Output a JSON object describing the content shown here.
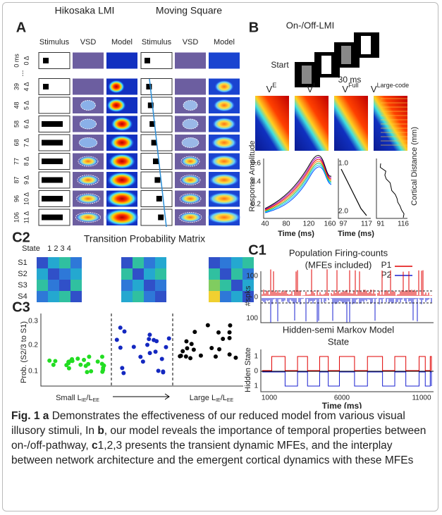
{
  "panel_a": {
    "label": "A",
    "titles": [
      "Hikosaka LMI",
      "Moving Square"
    ],
    "columns": [
      "Stimulus",
      "VSD",
      "Model",
      "Stimulus",
      "VSD",
      "Model"
    ],
    "ellipsis": "...",
    "rows": [
      {
        "time": "0 ms",
        "step": "0 Δ"
      },
      {
        "time": "39",
        "step": "4 Δ"
      },
      {
        "time": "48",
        "step": "5 Δ"
      },
      {
        "time": "58",
        "step": "6 Δ"
      },
      {
        "time": "68",
        "step": "7 Δ"
      },
      {
        "time": "77",
        "step": "8 Δ"
      },
      {
        "time": "87",
        "step": "9 Δ"
      },
      {
        "time": "96",
        "step": "10 Δ"
      },
      {
        "time": "106",
        "step": "11 Δ"
      }
    ]
  },
  "panel_b": {
    "label": "B",
    "title": "On-/Off-LMI",
    "start": "Start",
    "interval": "30 ms",
    "maps": [
      {
        "base": "V",
        "sup": "E"
      },
      {
        "base": "V",
        "sup": "I"
      },
      {
        "base": "V",
        "sup": "Full"
      },
      {
        "base": "V",
        "sup": "Large-code"
      }
    ],
    "ylabel": "Response Amplitude",
    "yticks": [
      "0.6",
      "0.4",
      "0.2"
    ],
    "xticks": [
      "40",
      "80",
      "120",
      "160"
    ],
    "xlabel": "Time (ms)",
    "distance_ticks": [
      "1.0",
      "2.0"
    ],
    "xticks_2": [
      "97",
      "117"
    ],
    "xlabel_2": "Time (ms)",
    "xticks_3": [
      "91",
      "116"
    ],
    "distance_label": "Cortical Distance (mm)"
  },
  "panel_c2": {
    "label": "C2",
    "title": "Transition Probability Matrix",
    "state": "State",
    "state_numbers": "1 2 3 4",
    "rows": [
      "S1",
      "S2",
      "S3",
      "S4"
    ]
  },
  "panel_c3": {
    "label": "C3",
    "ylabel": "Prob. (S2/3 to S1)",
    "yticks": [
      "0.3",
      "0.2",
      "0.1"
    ],
    "left": {
      "text": "Small L",
      "sub1": "IE",
      "mid": "/L",
      "sub2": "EE"
    },
    "right": {
      "text": "Large L",
      "sub1": "IE",
      "mid": "/L",
      "sub2": "EE"
    }
  },
  "panel_c1": {
    "label": "C1",
    "title": "Population Firing-counts",
    "subtitle": "(MFEs included)",
    "legend": [
      "P1",
      "P2"
    ],
    "ylabel": "#spks",
    "yticks": [
      "100",
      "0",
      "100"
    ],
    "title_2": "Hidden-semi Markov Model",
    "subtitle_2": "State",
    "ylabel_2": "Hidden State",
    "yticks_2": [
      "1",
      "0",
      "1"
    ],
    "xticks": [
      "1000",
      "6000",
      "11000"
    ],
    "xlabel": "Time (ms)"
  },
  "caption": {
    "label": "Fig. 1",
    "a": "a",
    "text_1": " Demonstrates the effectiveness of our reduced model from various visual illusory stimuli, In ",
    "b": "b",
    "text_2": ", our model reveals the importance of temporal properties between on-/off-pathway, ",
    "c": "c",
    "text_3": "1,2,3 presents the transient dynamic MFEs, and the interplay between network architecture and the emergent cortical dynamics with these MFEs"
  }
}
